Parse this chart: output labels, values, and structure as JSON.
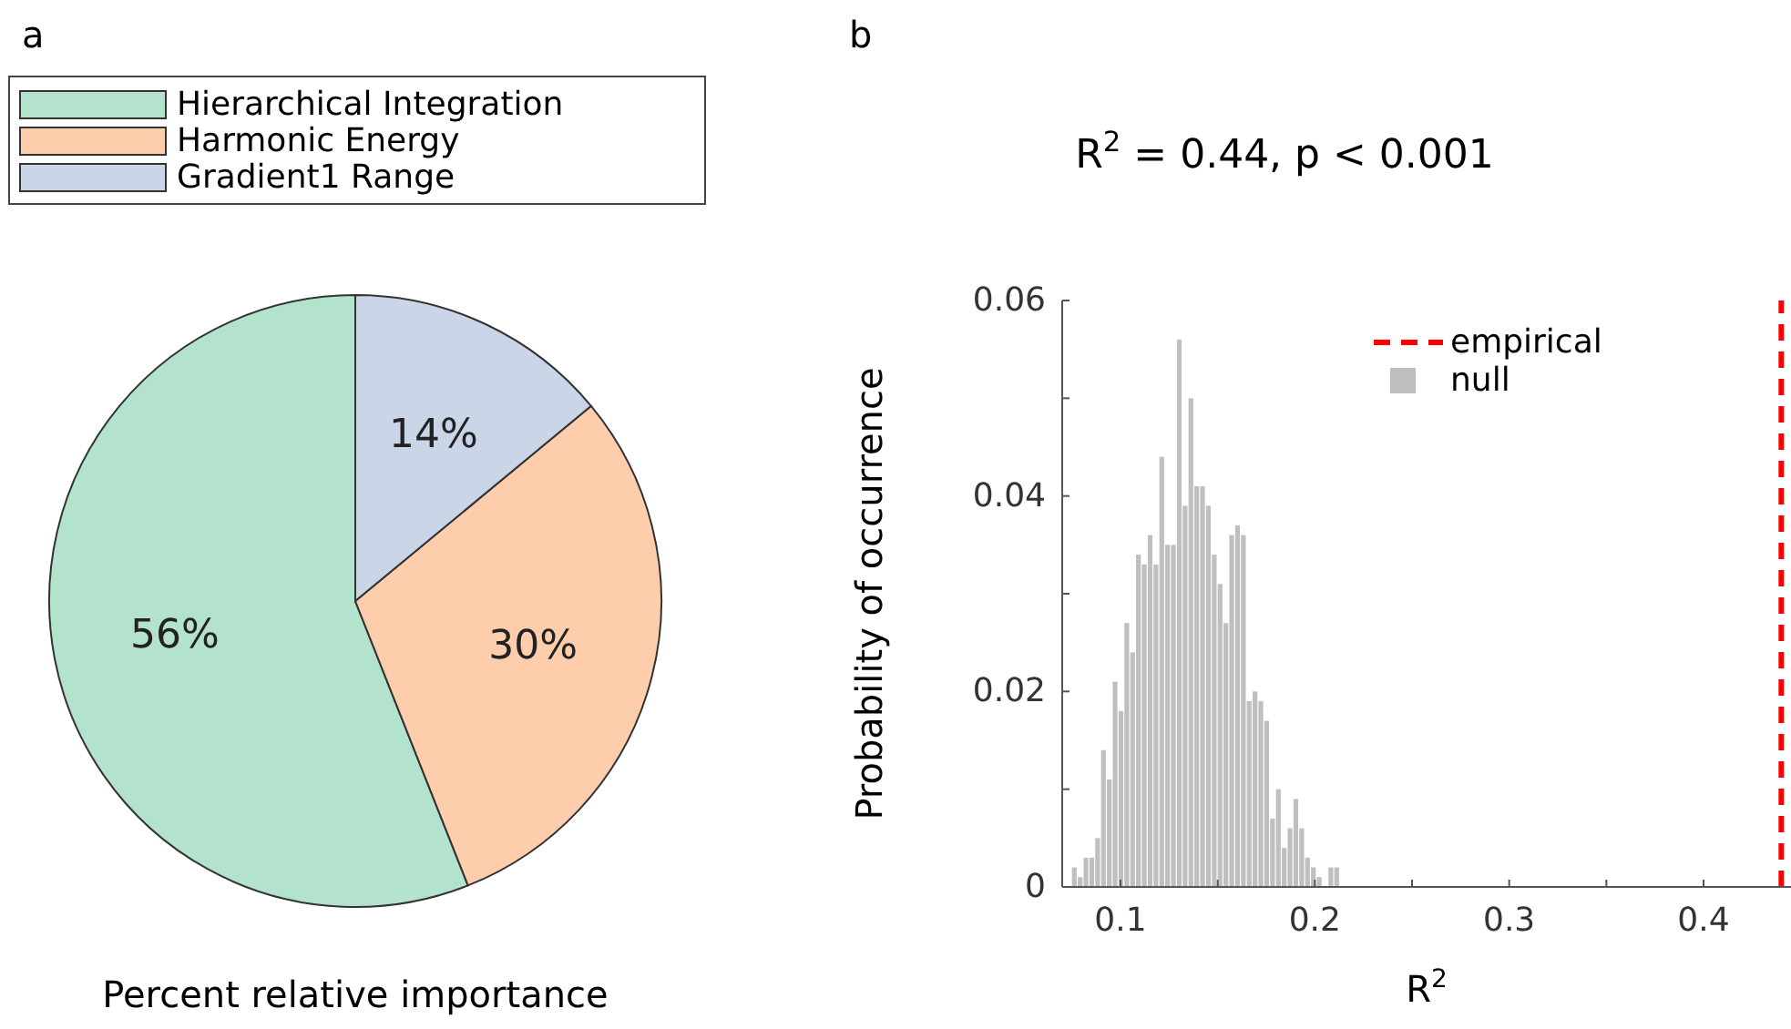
{
  "chart_data": [
    {
      "type": "pie",
      "annotations": [
        "a"
      ],
      "xlabel": "Percent relative importance",
      "legend": "top",
      "categories": [
        "Hierarchical Integration",
        "Harmonic Energy",
        "Gradient1 Range"
      ],
      "values": [
        56,
        30,
        14
      ],
      "colors": [
        "#b3e2cd",
        "#fdcdac",
        "#cbd5e8"
      ],
      "value_labels": [
        "56%",
        "30%",
        "14%"
      ]
    },
    {
      "type": "histogram",
      "annotations": [
        "b"
      ],
      "title": "R$^{2}$ = 0.44, p < 0.001",
      "xlabel": "R$^{2}$",
      "ylabel": "Probability of occurrence",
      "legend": "top right",
      "bins": [
        0.075,
        0.078,
        0.081,
        0.084,
        0.087,
        0.09,
        0.093,
        0.096,
        0.099,
        0.102,
        0.105,
        0.108,
        0.111,
        0.114,
        0.117,
        0.12,
        0.123,
        0.126,
        0.129,
        0.132,
        0.135,
        0.138,
        0.141,
        0.144,
        0.147,
        0.15,
        0.153,
        0.156,
        0.159,
        0.162,
        0.165,
        0.168,
        0.171,
        0.174,
        0.177,
        0.18,
        0.183,
        0.186,
        0.189,
        0.192,
        0.195,
        0.198,
        0.201,
        0.204,
        0.207,
        0.21,
        0.213
      ],
      "series": [
        {
          "name": "empirical",
          "type": "line",
          "color": "#ff0000",
          "line_style": "dashed",
          "x": [
            0.44,
            0.44
          ],
          "values": [
            0,
            0.06
          ]
        },
        {
          "name": "null",
          "color": "#bfbfbf",
          "values": [
            0.002,
            0.001,
            0.003,
            0.003,
            0.005,
            0.014,
            0.011,
            0.021,
            0.018,
            0.027,
            0.024,
            0.034,
            0.033,
            0.036,
            0.033,
            0.044,
            0.035,
            0.035,
            0.056,
            0.039,
            0.05,
            0.041,
            0.041,
            0.039,
            0.034,
            0.031,
            0.027,
            0.036,
            0.037,
            0.036,
            0.019,
            0.02,
            0.019,
            0.017,
            0.007,
            0.01,
            0.004,
            0.006,
            0.009,
            0.006,
            0.003,
            0.002,
            0.001,
            0,
            0.002,
            0.002
          ]
        }
      ],
      "xlim": [
        0.07,
        0.445
      ],
      "ylim": [
        0,
        0.06
      ],
      "xticks": [
        0.1,
        {
          "value": 0.15,
          "label": null
        },
        0.2,
        {
          "value": 0.25,
          "label": null
        },
        0.3,
        {
          "value": 0.35,
          "label": null
        },
        0.4
      ],
      "yticks": [
        0,
        {
          "value": 0.01,
          "label": null
        },
        0.02,
        {
          "value": 0.03,
          "label": null
        },
        0.04,
        {
          "value": 0.05,
          "label": null
        },
        0.06
      ]
    }
  ]
}
